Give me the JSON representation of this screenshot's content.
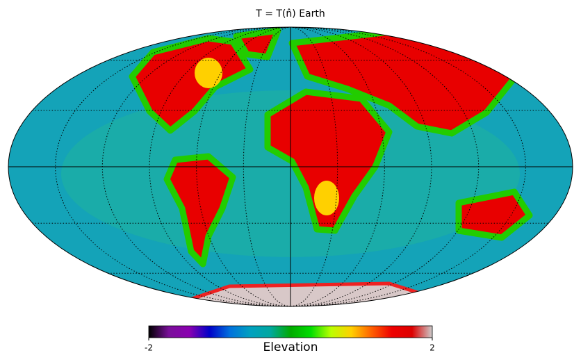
{
  "chart_data": {
    "type": "mollweide",
    "title": "T = T(n̂) Earth",
    "graticule": true,
    "colorbar": {
      "label": "Elevation",
      "lim": [
        -2,
        2
      ],
      "ticks": [
        -2,
        2
      ],
      "colormap": [
        "#000000",
        "#7a0f9a",
        "#8a00b0",
        "#0000c8",
        "#0070dd",
        "#00a0c0",
        "#00a8a0",
        "#00aa00",
        "#00dd00",
        "#bbff00",
        "#ffd000",
        "#ff6000",
        "#ee0000",
        "#dd0000",
        "#cccccc"
      ]
    }
  }
}
